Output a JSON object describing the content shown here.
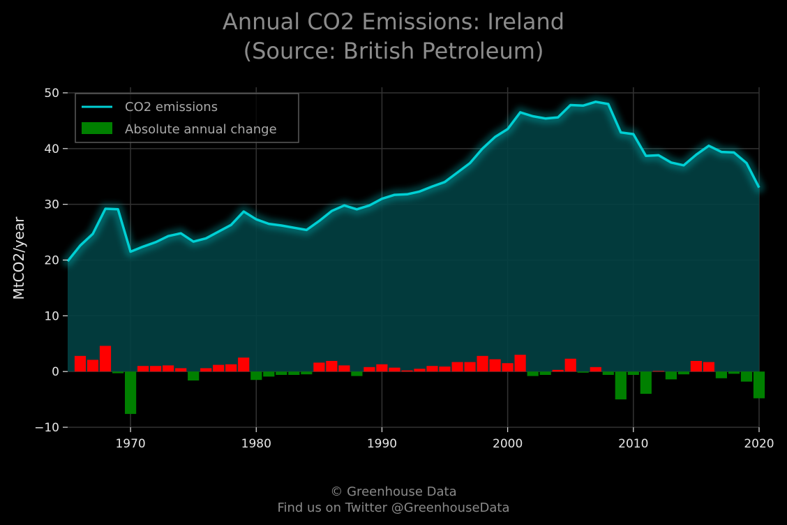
{
  "chart_data": {
    "type": "line",
    "title_line1": "Annual CO2 Emissions: Ireland",
    "title_line2": "(Source: British Petroleum)",
    "ylabel": "MtCO2/year",
    "xlabel": "",
    "xlim": [
      1965,
      2020
    ],
    "ylim": [
      -10,
      51
    ],
    "x_ticks": [
      "1970",
      "1980",
      "1990",
      "2000",
      "2010",
      "2020"
    ],
    "y_ticks": [
      "−10",
      "0",
      "10",
      "20",
      "30",
      "40",
      "50"
    ],
    "grid": true,
    "legend_position": "top-left",
    "x": [
      1965,
      1966,
      1967,
      1968,
      1969,
      1970,
      1971,
      1972,
      1973,
      1974,
      1975,
      1976,
      1977,
      1978,
      1979,
      1980,
      1981,
      1982,
      1983,
      1984,
      1985,
      1986,
      1987,
      1988,
      1989,
      1990,
      1991,
      1992,
      1993,
      1994,
      1995,
      1996,
      1997,
      1998,
      1999,
      2000,
      2001,
      2002,
      2003,
      2004,
      2005,
      2006,
      2007,
      2008,
      2009,
      2010,
      2011,
      2012,
      2013,
      2014,
      2015,
      2016,
      2017,
      2018,
      2019,
      2020
    ],
    "series": [
      {
        "name": "CO2 emissions",
        "kind": "line",
        "color": "#00d0d4",
        "values": [
          19.8,
          22.6,
          24.7,
          29.2,
          29.1,
          21.5,
          22.4,
          23.2,
          24.3,
          24.8,
          23.3,
          23.9,
          25.1,
          26.3,
          28.7,
          27.3,
          26.5,
          26.2,
          25.8,
          25.4,
          27.0,
          28.8,
          29.8,
          29.1,
          29.8,
          31.0,
          31.7,
          31.8,
          32.3,
          33.2,
          34.0,
          35.7,
          37.4,
          40.0,
          42.1,
          43.5,
          46.5,
          45.8,
          45.4,
          45.6,
          47.8,
          47.7,
          48.4,
          48.0,
          42.9,
          42.6,
          38.7,
          38.8,
          37.5,
          37.0,
          38.9,
          40.5,
          39.4,
          39.3,
          37.4,
          33.0
        ]
      },
      {
        "name": "Absolute annual change",
        "kind": "bar",
        "color_positive": "#ff0000",
        "color_negative": "#008000",
        "values": [
          0,
          2.8,
          2.1,
          4.6,
          -0.3,
          -7.6,
          1.0,
          1.0,
          1.1,
          0.6,
          -1.6,
          0.6,
          1.2,
          1.3,
          2.5,
          -1.5,
          -0.9,
          -0.6,
          -0.6,
          -0.5,
          1.6,
          1.9,
          1.1,
          -0.8,
          0.8,
          1.3,
          0.7,
          0.2,
          0.5,
          1.0,
          0.9,
          1.7,
          1.7,
          2.8,
          2.2,
          1.5,
          3.0,
          -0.8,
          -0.6,
          0.3,
          2.3,
          -0.2,
          0.8,
          -0.6,
          -5.0,
          -0.6,
          -4.0,
          0.1,
          -1.4,
          -0.5,
          1.9,
          1.7,
          -1.2,
          -0.4,
          -1.8,
          -4.8
        ]
      }
    ],
    "colors": {
      "background": "#000000",
      "fill": "#024043",
      "grid": "#333333",
      "text": "#e6e6e6",
      "title": "#8c8c8c"
    }
  },
  "footer": {
    "line1": "© Greenhouse Data",
    "line2": "Find us on Twitter @GreenhouseData"
  }
}
